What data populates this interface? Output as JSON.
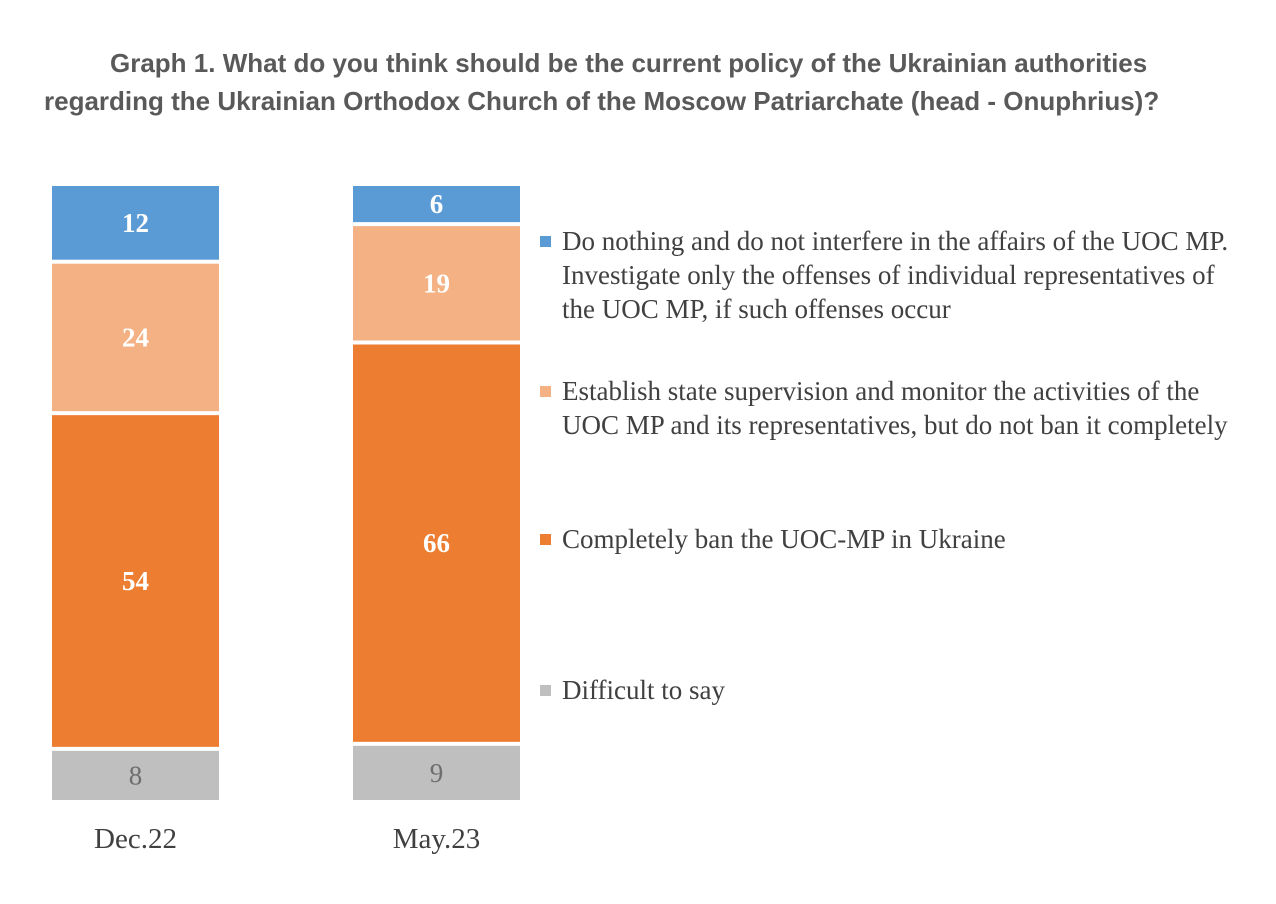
{
  "title": {
    "line1": "Graph 1. What do you think should be the current policy of the Ukrainian authorities",
    "line2": "regarding the Ukrainian Orthodox Church of the Moscow Patriarchate (head - Onuphrius)?"
  },
  "chart_data": {
    "type": "bar",
    "stacked": true,
    "title": "Graph 1. What do you think should be the current policy of the Ukrainian authorities regarding the Ukrainian Orthodox Church of the Moscow Patriarchate (head - Onuphrius)?",
    "categories": [
      "Dec.22",
      "May.23"
    ],
    "series": [
      {
        "name": "Do nothing and do not interfere in the affairs of the UOC MP. Investigate only the offenses of individual representatives of the UOC MP, if such offenses occur",
        "color": "#5b9bd5",
        "values": [
          12,
          6
        ]
      },
      {
        "name": "Establish state supervision and monitor the activities of the UOC MP and its representatives, but do not ban it completely",
        "color": "#f4b183",
        "values": [
          24,
          19
        ]
      },
      {
        "name": "Completely ban the UOC-MP in Ukraine",
        "color": "#ed7d31",
        "values": [
          54,
          66
        ]
      },
      {
        "name": "Difficult to say",
        "color": "#bfbfbf",
        "values": [
          8,
          9
        ]
      }
    ],
    "stack_order": "top-to-bottom",
    "legend_position": "right",
    "xlabel": "",
    "ylabel": ""
  }
}
